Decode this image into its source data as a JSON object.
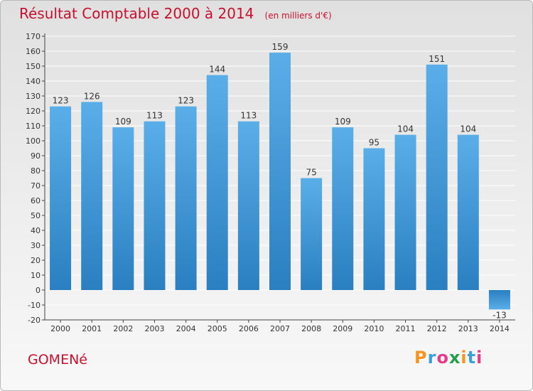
{
  "header": {
    "title": "Résultat Comptable 2000 à 2014",
    "unit": "(en milliers d'€)"
  },
  "commune": "GOMENé",
  "logo": {
    "letters": [
      "P",
      "r",
      "o",
      "x",
      "i",
      "t",
      "i"
    ],
    "colors": [
      "#f7941d",
      "#3aa0dc",
      "#e63a8c",
      "#22a04a",
      "#f7941d",
      "#3aa0dc",
      "#e63a8c"
    ]
  },
  "colors": {
    "bar_light": "#5aaee8",
    "bar_dark": "#2a7fc0",
    "grid": "#ffffff",
    "title": "#c8102e"
  },
  "chart_data": {
    "type": "bar",
    "title": "Résultat Comptable 2000 à 2014",
    "subtitle": "(en milliers d'€)",
    "xlabel": "",
    "ylabel": "",
    "categories": [
      "2000",
      "2001",
      "2002",
      "2003",
      "2004",
      "2005",
      "2006",
      "2007",
      "2008",
      "2009",
      "2010",
      "2011",
      "2012",
      "2013",
      "2014"
    ],
    "values": [
      123,
      126,
      109,
      113,
      123,
      144,
      113,
      159,
      75,
      109,
      95,
      104,
      151,
      104,
      -13
    ],
    "labels": [
      "123",
      "126",
      "109",
      "113",
      "123",
      "144",
      "113",
      "159",
      "75",
      "109",
      "95",
      "104",
      "151",
      "104",
      "-13"
    ],
    "ylim": [
      -20,
      170
    ],
    "yticks": [
      -20,
      -10,
      0,
      10,
      20,
      30,
      40,
      50,
      60,
      70,
      80,
      90,
      100,
      110,
      120,
      130,
      140,
      150,
      160,
      170
    ],
    "grid": true,
    "legend": "none"
  }
}
